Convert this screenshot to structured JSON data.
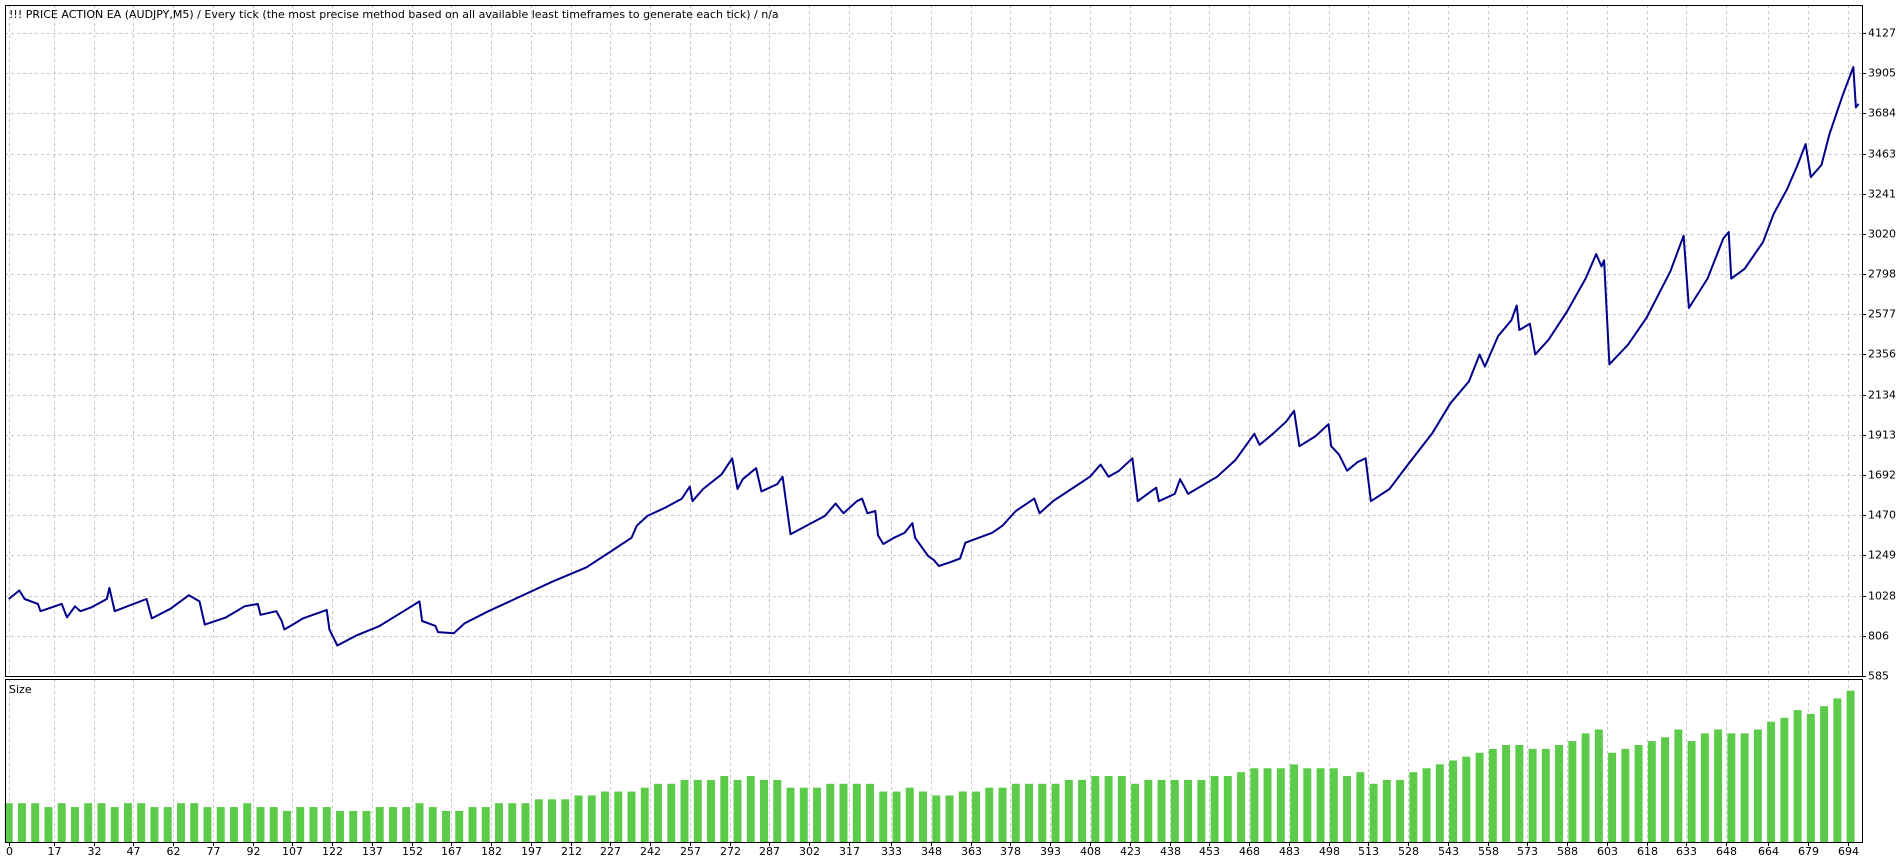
{
  "chart_data": [
    {
      "type": "line",
      "title": "!!! PRICE ACTION EA (AUDJPY,M5) / Every tick (the most precise method based on all available least timeframes to generate each tick) / n/a",
      "color": "#00008b",
      "x": [
        0,
        4,
        6,
        11,
        12,
        20,
        22,
        25,
        27,
        31,
        37,
        38,
        40,
        52,
        54,
        61,
        68,
        72,
        74,
        82,
        89,
        94,
        95,
        101,
        103,
        104,
        108,
        111,
        120,
        121,
        124,
        131,
        140,
        149,
        155,
        156,
        161,
        162,
        168,
        172,
        181,
        191,
        205,
        218,
        228,
        235,
        237,
        241,
        248,
        254,
        257,
        258,
        262,
        269,
        273,
        275,
        277,
        282,
        284,
        290,
        292,
        295,
        301,
        308,
        312,
        315,
        320,
        322,
        324,
        327,
        328,
        330,
        334,
        338,
        341,
        342,
        347,
        349,
        351,
        355,
        359,
        361,
        371,
        375,
        380,
        387,
        389,
        394,
        401,
        408,
        412,
        415,
        419,
        424,
        426,
        431,
        433,
        434,
        440,
        442,
        445,
        456,
        463,
        470,
        472,
        477,
        482,
        485,
        487,
        493,
        498,
        499,
        502,
        505,
        509,
        512,
        514,
        521,
        528,
        537,
        544,
        551,
        555,
        557,
        562,
        567,
        569,
        570,
        574,
        576,
        581,
        588,
        595,
        599,
        601,
        602,
        604,
        611,
        618,
        627,
        632,
        634,
        641,
        647,
        649,
        650,
        655,
        662,
        666,
        671,
        675,
        678,
        680,
        684,
        687,
        692,
        696,
        697,
        698
      ],
      "values": [
        1009,
        1056,
        1009,
        982,
        942,
        982,
        908,
        969,
        942,
        962,
        1009,
        1070,
        942,
        1009,
        902,
        955,
        1030,
        996,
        868,
        908,
        969,
        982,
        922,
        942,
        888,
        841,
        875,
        902,
        949,
        841,
        753,
        807,
        861,
        942,
        996,
        888,
        861,
        827,
        821,
        875,
        942,
        1009,
        1104,
        1184,
        1279,
        1346,
        1413,
        1467,
        1514,
        1562,
        1629,
        1548,
        1615,
        1696,
        1784,
        1615,
        1669,
        1730,
        1602,
        1642,
        1683,
        1366,
        1413,
        1467,
        1535,
        1481,
        1548,
        1562,
        1481,
        1494,
        1360,
        1312,
        1346,
        1373,
        1427,
        1346,
        1245,
        1225,
        1191,
        1211,
        1232,
        1319,
        1373,
        1413,
        1494,
        1562,
        1481,
        1548,
        1615,
        1683,
        1750,
        1683,
        1716,
        1784,
        1548,
        1602,
        1622,
        1548,
        1588,
        1669,
        1588,
        1683,
        1777,
        1919,
        1858,
        1919,
        1986,
        2046,
        1851,
        1905,
        1972,
        1851,
        1804,
        1716,
        1764,
        1784,
        1548,
        1615,
        1750,
        1919,
        2087,
        2208,
        2356,
        2289,
        2457,
        2545,
        2626,
        2491,
        2525,
        2356,
        2437,
        2592,
        2774,
        2909,
        2841,
        2875,
        2302,
        2410,
        2558,
        2814,
        3010,
        2612,
        2774,
        2996,
        3030,
        2774,
        2828,
        2976,
        3131,
        3266,
        3400,
        3515,
        3333,
        3400,
        3569,
        3784,
        3939,
        3717,
        3737
      ],
      "xlim": [
        -1.4,
        699.3
      ],
      "xticks": [
        0,
        17,
        32,
        47,
        62,
        77,
        92,
        107,
        122,
        137,
        152,
        167,
        182,
        197,
        212,
        227,
        242,
        257,
        272,
        287,
        302,
        317,
        333,
        348,
        363,
        378,
        393,
        408,
        423,
        438,
        453,
        468,
        483,
        498,
        513,
        528,
        543,
        558,
        573,
        588,
        603,
        618,
        633,
        648,
        664,
        679,
        694
      ],
      "ylim": [
        585,
        4281
      ],
      "yticks": [
        4127,
        3905,
        3684,
        3463,
        3241,
        3020,
        2798,
        2577,
        2356,
        2134,
        1913,
        1692,
        1470,
        1249,
        1028,
        806,
        585
      ],
      "grid": true
    },
    {
      "type": "bar",
      "title": "Size",
      "color": "#5ccb4a",
      "x": [
        0,
        5,
        10,
        15,
        20,
        25,
        30,
        35,
        40,
        45,
        50,
        55,
        60,
        65,
        70,
        75,
        80,
        85,
        90,
        95,
        100,
        105,
        110,
        115,
        120,
        125,
        130,
        135,
        140,
        145,
        150,
        155,
        160,
        165,
        170,
        175,
        180,
        185,
        190,
        195,
        200,
        205,
        210,
        215,
        220,
        225,
        230,
        235,
        240,
        245,
        250,
        255,
        260,
        265,
        270,
        275,
        280,
        285,
        290,
        295,
        300,
        305,
        310,
        315,
        320,
        325,
        330,
        335,
        340,
        345,
        350,
        355,
        360,
        365,
        370,
        375,
        380,
        385,
        390,
        395,
        400,
        405,
        410,
        415,
        420,
        425,
        430,
        435,
        440,
        445,
        450,
        455,
        460,
        465,
        470,
        475,
        480,
        485,
        490,
        495,
        500,
        505,
        510,
        515,
        520,
        525,
        530,
        535,
        540,
        545,
        550,
        555,
        560,
        565,
        570,
        575,
        580,
        585,
        590,
        595,
        600,
        605,
        610,
        615,
        620,
        625,
        630,
        635,
        640,
        645,
        650,
        655,
        660,
        665,
        670,
        675,
        680,
        685,
        690,
        695
      ],
      "values": [
        0.1,
        0.1,
        0.1,
        0.09,
        0.1,
        0.09,
        0.1,
        0.1,
        0.09,
        0.1,
        0.1,
        0.09,
        0.09,
        0.1,
        0.1,
        0.09,
        0.09,
        0.09,
        0.1,
        0.09,
        0.09,
        0.08,
        0.09,
        0.09,
        0.09,
        0.08,
        0.08,
        0.08,
        0.09,
        0.09,
        0.09,
        0.1,
        0.09,
        0.08,
        0.08,
        0.09,
        0.09,
        0.1,
        0.1,
        0.1,
        0.11,
        0.11,
        0.11,
        0.12,
        0.12,
        0.13,
        0.13,
        0.13,
        0.14,
        0.15,
        0.15,
        0.16,
        0.16,
        0.16,
        0.17,
        0.16,
        0.17,
        0.16,
        0.16,
        0.14,
        0.14,
        0.14,
        0.15,
        0.15,
        0.15,
        0.15,
        0.13,
        0.13,
        0.14,
        0.13,
        0.12,
        0.12,
        0.13,
        0.13,
        0.14,
        0.14,
        0.15,
        0.15,
        0.15,
        0.15,
        0.16,
        0.16,
        0.17,
        0.17,
        0.17,
        0.15,
        0.16,
        0.16,
        0.16,
        0.16,
        0.16,
        0.17,
        0.17,
        0.18,
        0.19,
        0.19,
        0.19,
        0.2,
        0.19,
        0.19,
        0.19,
        0.17,
        0.18,
        0.15,
        0.16,
        0.16,
        0.18,
        0.19,
        0.2,
        0.21,
        0.22,
        0.23,
        0.24,
        0.25,
        0.25,
        0.24,
        0.24,
        0.25,
        0.26,
        0.28,
        0.29,
        0.23,
        0.24,
        0.25,
        0.26,
        0.27,
        0.29,
        0.26,
        0.28,
        0.29,
        0.28,
        0.28,
        0.29,
        0.31,
        0.32,
        0.34,
        0.33,
        0.35,
        0.37,
        0.39
      ],
      "ylim": [
        0,
        0.42
      ]
    }
  ]
}
